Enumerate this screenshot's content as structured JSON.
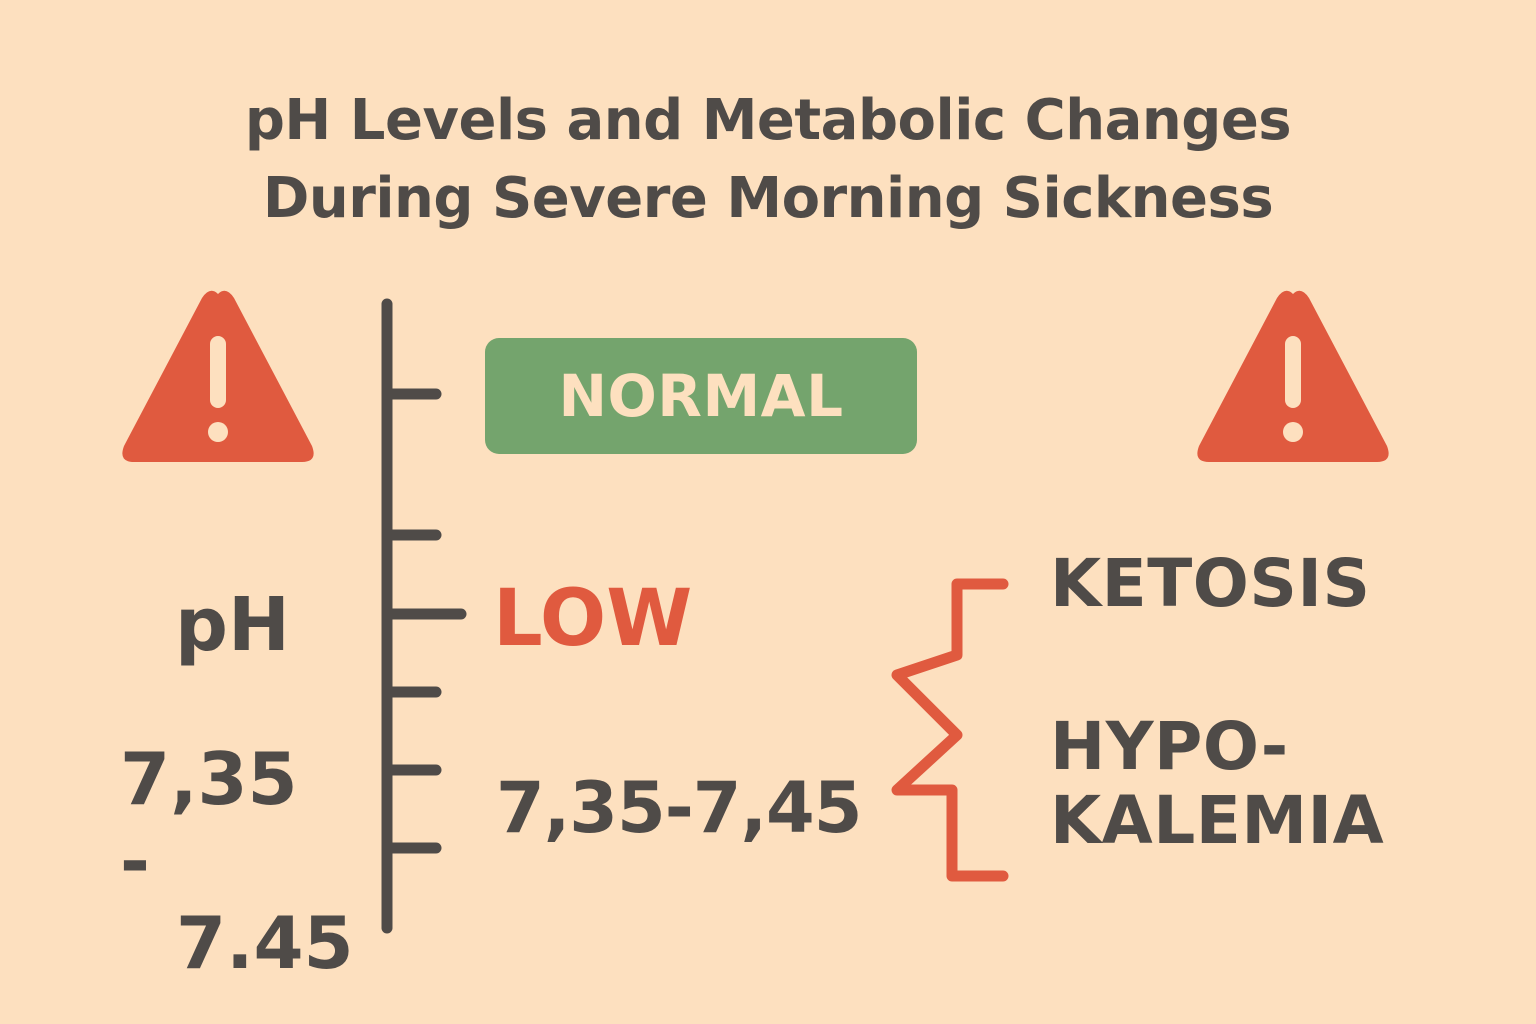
{
  "title": {
    "line1": "pH Levels and Metabolic Changes",
    "line2": "During Severe Morning Sickness"
  },
  "axis_label": "pH",
  "left_range": {
    "line1": "7,35 -",
    "line2": "7.45"
  },
  "normal_label": "NORMAL",
  "low_label": "LOW",
  "center_range": "7,35-7,45",
  "conditions": {
    "ketosis": "KETOSIS",
    "hypokalemia_line1": "HYPO-",
    "hypokalemia_line2": "KALEMIA"
  },
  "icons": {
    "left": "warning-triangle-icon",
    "right": "warning-triangle-icon"
  },
  "colors": {
    "background": "#fde0bf",
    "text": "#4f4b48",
    "normal": "#74a46d",
    "alert": "#e05a3f"
  }
}
